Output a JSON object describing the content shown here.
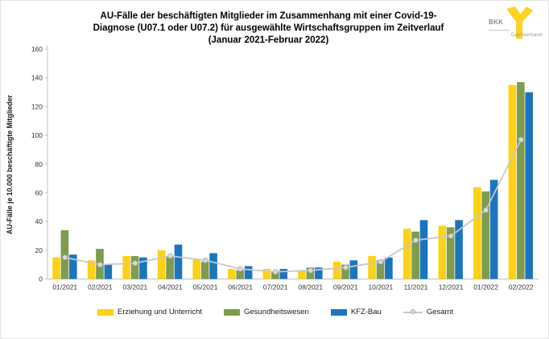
{
  "title": {
    "lines": [
      "AU-Fälle der beschäftigten Mitglieder im Zusammenhang mit einer Covid-19-",
      "Diagnose (U07.1 oder U07.2) für ausgewählte Wirtschaftsgruppen im Zeitverlauf",
      "(Januar 2021-Februar 2022)"
    ]
  },
  "logo": {
    "brand": "BKK",
    "subtitle": "Dachverband",
    "color": "#FFD320"
  },
  "chart_data": {
    "type": "bar",
    "title": "AU-Fälle der beschäftigten Mitglieder im Zusammenhang mit einer Covid-19-Diagnose (U07.1 oder U07.2) für ausgewählte Wirtschaftsgruppen im Zeitverlauf (Januar 2021-Februar 2022)",
    "xlabel": "",
    "ylabel": "AU-Fälle je 10.000 beschäftigte Mitglieder",
    "ylim": [
      0,
      160
    ],
    "yticks": [
      0,
      20,
      40,
      60,
      80,
      100,
      120,
      140,
      160
    ],
    "grid": false,
    "legend_position": "bottom",
    "categories": [
      "01/2021",
      "02/2021",
      "03/2021",
      "04/2021",
      "05/2021",
      "06/2021",
      "07/2021",
      "08/2021",
      "09/2021",
      "10/2021",
      "11/2021",
      "12/2021",
      "01/2022",
      "02/2022"
    ],
    "series": [
      {
        "name": "Erziehung und Unterricht",
        "type": "bar",
        "color": "#FCD116",
        "values": [
          15,
          13,
          16,
          20,
          14,
          7,
          7,
          6,
          12,
          16,
          35,
          37,
          64,
          135
        ]
      },
      {
        "name": "Gesundheitswesen",
        "type": "bar",
        "color": "#7E9B4E",
        "values": [
          34,
          21,
          16,
          16,
          12,
          6,
          5,
          8,
          10,
          13,
          33,
          36,
          61,
          137
        ]
      },
      {
        "name": "KFZ-Bau",
        "type": "bar",
        "color": "#1B75BC",
        "values": [
          17,
          10,
          15,
          24,
          18,
          9,
          7,
          8,
          13,
          15,
          41,
          41,
          69,
          130
        ]
      },
      {
        "name": "Gesamt",
        "type": "line",
        "color": "#C7C7C7",
        "marker_fill": "#D9D9D9",
        "marker_edge": "#ABABAB",
        "values": [
          15,
          10,
          11,
          16,
          13,
          7,
          5,
          6,
          8,
          12,
          27,
          30,
          48,
          97
        ]
      }
    ],
    "axis_color": "#BFBFBF",
    "tick_label_color": "#333333"
  }
}
